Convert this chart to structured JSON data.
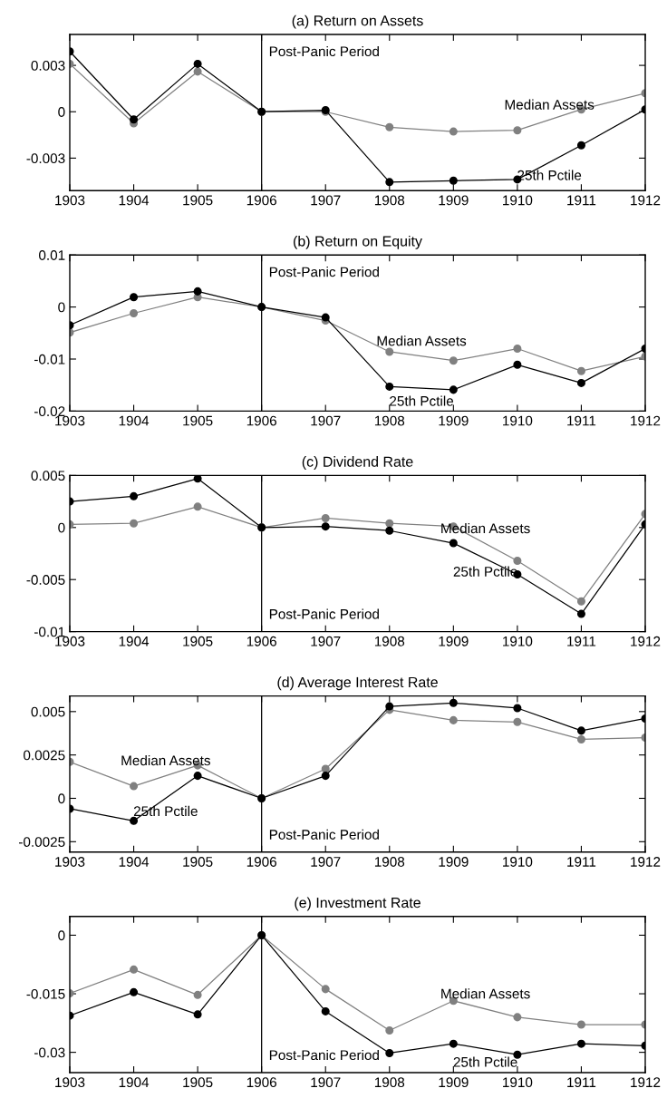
{
  "chart_data": [
    {
      "type": "line",
      "title": "(a) Return on Assets",
      "x": [
        1903,
        1904,
        1905,
        1906,
        1907,
        1908,
        1909,
        1910,
        1911,
        1912
      ],
      "xlim": [
        1903,
        1912
      ],
      "xticks": [
        1903,
        1904,
        1905,
        1906,
        1907,
        1908,
        1909,
        1910,
        1911,
        1912
      ],
      "ylim": [
        -0.0051,
        0.005
      ],
      "yticks": [
        -0.003,
        0,
        0.003
      ],
      "marker": "circle",
      "line_style": "solid",
      "grid": false,
      "series": [
        {
          "name": "Median Assets",
          "color": "#808080",
          "values": [
            0.0031,
            -0.00075,
            0.0026,
            0,
            0,
            -0.001,
            -0.00128,
            -0.0012,
            0.00015,
            0.0012
          ]
        },
        {
          "name": "25th Pctile",
          "color": "#000000",
          "values": [
            0.0039,
            -0.0005,
            0.0031,
            0,
            0.0001,
            -0.00455,
            -0.00446,
            -0.00438,
            -0.00217,
            0.00015
          ]
        }
      ],
      "ref_lines": [
        {
          "axis": "x",
          "value": 1906,
          "color": "#000000",
          "label": "Post-Panic Period"
        }
      ]
    },
    {
      "type": "line",
      "title": "(b) Return on Equity",
      "x": [
        1903,
        1904,
        1905,
        1906,
        1907,
        1908,
        1909,
        1910,
        1911,
        1912
      ],
      "xlim": [
        1903,
        1912
      ],
      "xticks": [
        1903,
        1904,
        1905,
        1906,
        1907,
        1908,
        1909,
        1910,
        1911,
        1912
      ],
      "ylim": [
        -0.02,
        0.01
      ],
      "yticks": [
        -0.02,
        -0.01,
        0,
        0.01
      ],
      "marker": "circle",
      "line_style": "solid",
      "grid": false,
      "series": [
        {
          "name": "Median Assets",
          "color": "#808080",
          "values": [
            -0.0049,
            -0.0012,
            0.0019,
            0,
            -0.0026,
            -0.0086,
            -0.0103,
            -0.008,
            -0.0123,
            -0.0095
          ]
        },
        {
          "name": "25th Pctile",
          "color": "#000000",
          "values": [
            -0.0035,
            0.0019,
            0.003,
            0,
            -0.002,
            -0.0153,
            -0.0159,
            -0.0111,
            -0.0146,
            -0.008
          ]
        }
      ],
      "ref_lines": [
        {
          "axis": "x",
          "value": 1906,
          "color": "#000000",
          "label": "Post-Panic Period"
        }
      ]
    },
    {
      "type": "line",
      "title": "(c) Dividend Rate",
      "x": [
        1903,
        1904,
        1905,
        1906,
        1907,
        1908,
        1909,
        1910,
        1911,
        1912
      ],
      "xlim": [
        1903,
        1912
      ],
      "xticks": [
        1903,
        1904,
        1905,
        1906,
        1907,
        1908,
        1909,
        1910,
        1911,
        1912
      ],
      "ylim": [
        -0.01,
        0.005
      ],
      "yticks": [
        -0.01,
        -0.005,
        0,
        0.005
      ],
      "marker": "circle",
      "line_style": "solid",
      "grid": false,
      "series": [
        {
          "name": "Median Assets",
          "color": "#808080",
          "values": [
            0.0003,
            0.0004,
            0.002,
            0,
            0.0009,
            0.0004,
            0.0001,
            -0.0032,
            -0.0071,
            0.0013
          ]
        },
        {
          "name": "25th Pctile",
          "color": "#000000",
          "values": [
            0.0025,
            0.003,
            0.0047,
            0,
            0.0001,
            -0.0003,
            -0.0015,
            -0.0045,
            -0.0083,
            0.0003
          ]
        }
      ],
      "ref_lines": [
        {
          "axis": "x",
          "value": 1906,
          "color": "#000000",
          "label": "Post-Panic Period"
        }
      ]
    },
    {
      "type": "line",
      "title": "(d) Average Interest Rate",
      "x": [
        1903,
        1904,
        1905,
        1906,
        1907,
        1908,
        1909,
        1910,
        1911,
        1912
      ],
      "xlim": [
        1903,
        1912
      ],
      "xticks": [
        1903,
        1904,
        1905,
        1906,
        1907,
        1908,
        1909,
        1910,
        1911,
        1912
      ],
      "ylim": [
        -0.0031,
        0.0059
      ],
      "yticks": [
        -0.0025,
        0,
        0.0025,
        0.005
      ],
      "marker": "circle",
      "line_style": "solid",
      "grid": false,
      "series": [
        {
          "name": "Median Assets",
          "color": "#808080",
          "values": [
            0.0021,
            0.0007,
            0.0019,
            0,
            0.0017,
            0.0051,
            0.0045,
            0.0044,
            0.0034,
            0.0035
          ]
        },
        {
          "name": "25th Pctile",
          "color": "#000000",
          "values": [
            -0.0006,
            -0.0013,
            0.0013,
            0,
            0.0013,
            0.0053,
            0.0055,
            0.0052,
            0.0039,
            0.0046
          ]
        }
      ],
      "ref_lines": [
        {
          "axis": "x",
          "value": 1906,
          "color": "#000000",
          "label": "Post-Panic Period"
        }
      ]
    },
    {
      "type": "line",
      "title": "(e) Investment Rate",
      "x": [
        1903,
        1904,
        1905,
        1906,
        1907,
        1908,
        1909,
        1910,
        1911,
        1912
      ],
      "xlim": [
        1903,
        1912
      ],
      "xticks": [
        1903,
        1904,
        1905,
        1906,
        1907,
        1908,
        1909,
        1910,
        1911,
        1912
      ],
      "ylim": [
        -0.0352,
        0.0048
      ],
      "yticks": [
        -0.03,
        -0.015,
        0
      ],
      "marker": "circle",
      "line_style": "solid",
      "grid": false,
      "series": [
        {
          "name": "Median Assets",
          "color": "#808080",
          "values": [
            -0.0149,
            -0.0088,
            -0.0153,
            0,
            -0.0138,
            -0.0244,
            -0.0168,
            -0.021,
            -0.0229,
            -0.0229
          ]
        },
        {
          "name": "25th Pctile",
          "color": "#000000",
          "values": [
            -0.0206,
            -0.0146,
            -0.0203,
            0,
            -0.0195,
            -0.0302,
            -0.0278,
            -0.0306,
            -0.0278,
            -0.0283
          ]
        }
      ],
      "ref_lines": [
        {
          "axis": "x",
          "value": 1906,
          "color": "#000000",
          "label": "Post-Panic Period"
        }
      ]
    }
  ]
}
